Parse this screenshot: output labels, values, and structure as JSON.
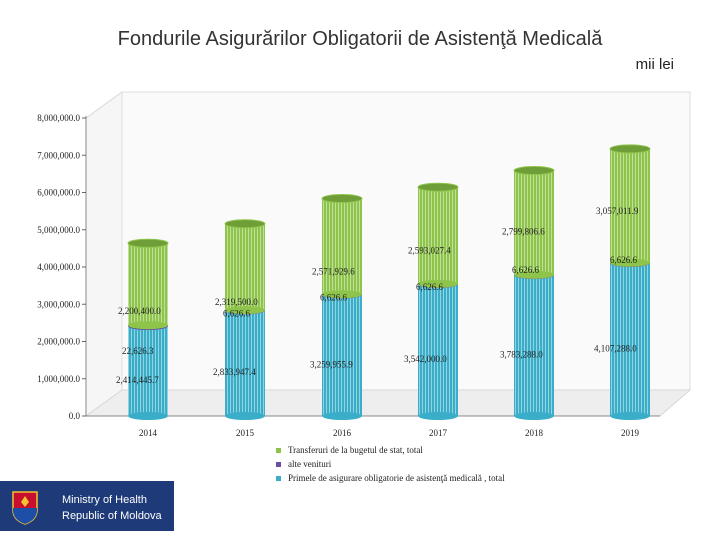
{
  "page": {
    "title": "Fondurile Asigurărilor Obligatorii de Asistenţă Medicală",
    "unit": "mii lei"
  },
  "logo": {
    "line1": "Ministry of Health",
    "line2": "Republic of Moldova"
  },
  "chart_data": {
    "type": "bar",
    "stacked": true,
    "categories": [
      "2014",
      "2015",
      "2016",
      "2017",
      "2018",
      "2019"
    ],
    "ylim": [
      0,
      8000000
    ],
    "yticks": [
      0,
      1000000,
      2000000,
      3000000,
      4000000,
      5000000,
      6000000,
      7000000,
      8000000
    ],
    "ytick_labels": [
      "0.0",
      "1,000,000.0",
      "2,000,000.0",
      "3,000,000.0",
      "4,000,000.0",
      "5,000,000.0",
      "6,000,000.0",
      "7,000,000.0",
      "8,000,000.0"
    ],
    "series": [
      {
        "name": "Primele de asigurare obligatorie de asistenţă medicală , total",
        "color": "#3aaec9",
        "values": [
          2414445.7,
          2833947.4,
          3259955.9,
          3542000.0,
          3783288.0,
          4107288.0
        ],
        "labels": [
          "2,414,445.7",
          "2,833,947.4",
          "3,259,955.9",
          "3,542,000.0",
          "3,783,288.0",
          "4,107,288.0"
        ]
      },
      {
        "name": "alte venituri",
        "color": "#6a4fa0",
        "values": [
          22626.3,
          6626.6,
          6626.6,
          6626.6,
          6626.6,
          6626.6
        ],
        "labels": [
          "22,626.3",
          "6,626.6",
          "6,626.6",
          "6,626.6",
          "6,626.6",
          "6,626.6"
        ]
      },
      {
        "name": "Transferuri de la bugetul de stat, total",
        "color": "#8ec44a",
        "values": [
          2200400.0,
          2319500.0,
          2571929.6,
          2593027.4,
          2799806.6,
          3057011.9
        ],
        "labels": [
          "2,200,400.0",
          "2,319,500.0",
          "2,571,929.6",
          "2,593,027.4",
          "2,799,806.6",
          "3,057,011.9"
        ]
      }
    ],
    "legend": [
      "Transferuri de la bugetul de stat, total",
      "alte venituri",
      "Primele de asigurare obligatorie de asistenţă medicală , total"
    ]
  }
}
